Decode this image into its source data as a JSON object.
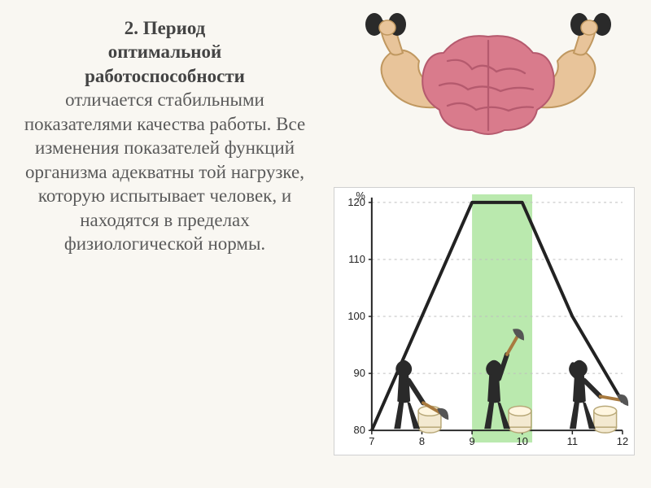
{
  "text": {
    "num": "2.",
    "title_l1": "Период",
    "title_l2": "оптимальной",
    "title_l3": "работоспособности",
    "body": "отличается стабильными показателями качества работы. Все изменения показателей функций организма адекватны той нагрузке, которую испытывает человек, и находятся в пределах физиологической нормы."
  },
  "brain": {
    "brain_color": "#d97b8c",
    "brain_shadow": "#b55a6e",
    "arm_color": "#e8c49a",
    "arm_outline": "#c09860",
    "dumbbell_color": "#2a2a2a"
  },
  "chart": {
    "type": "line",
    "background": "#ffffff",
    "highlight_fill": "#aee5a0",
    "highlight_opacity": 0.85,
    "axis_color": "#222222",
    "grid_color": "#bfbfbf",
    "line_color": "#222222",
    "line_width": 2,
    "line_stroke_width": 4,
    "y_label": "%",
    "y_ticks": [
      80,
      90,
      100,
      110,
      120
    ],
    "x_ticks": [
      7,
      8,
      9,
      10,
      11,
      12
    ],
    "highlight_x_start": 9,
    "highlight_x_end": 10.2,
    "plot": {
      "x": [
        7,
        8,
        9,
        10,
        11,
        12
      ],
      "y": [
        80,
        100,
        120,
        120,
        100,
        85
      ]
    },
    "figure_color": "#2a2a2a",
    "log_color": "#f3e9d0",
    "log_outline": "#b8a878",
    "axe_handle": "#a87a3f",
    "axe_head": "#555555",
    "font_size_axis": 13
  }
}
